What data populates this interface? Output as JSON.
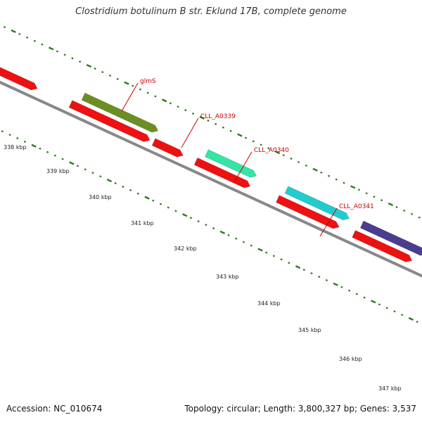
{
  "title": "Clostridium botulinum B str. Eklund 17B, complete genome",
  "footer": {
    "accession": "Accession: NC_010674",
    "summary": "Topology: circular; Length: 3,800,327 bp; Genes: 3,537"
  },
  "scale": {
    "ticks": [
      "338 kbp",
      "339 kbp",
      "340 kbp",
      "341 kbp",
      "342 kbp",
      "343 kbp",
      "344 kbp",
      "345 kbp",
      "346 kbp",
      "347 kbp"
    ],
    "color": "#2a7a1a"
  },
  "backbone_color": "#888888",
  "gene_labels": [
    "glmS",
    "CLL_A0339",
    "CLL_A0340",
    "CLL_A0341"
  ],
  "colors": {
    "red": "#ee1111",
    "olive": "#6b8e23",
    "aquamarine": "#33e6a6",
    "cyan": "#22cccc",
    "indigo": "#4a3d8f",
    "label_red": "#cc0000"
  }
}
